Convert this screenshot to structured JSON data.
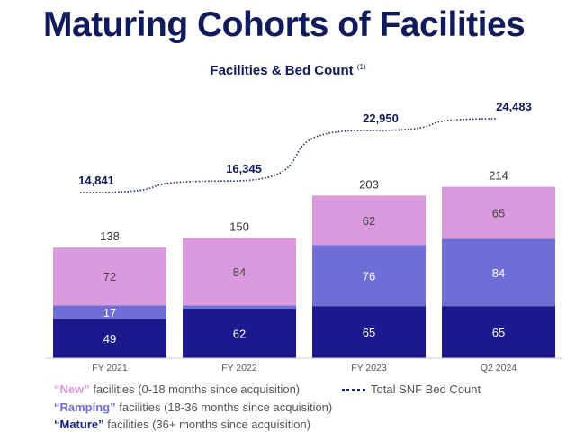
{
  "title": "Maturing Cohorts of Facilities",
  "chart_data": {
    "type": "bar",
    "title": "Facilities & Bed Count",
    "title_note": "(1)",
    "categories": [
      "FY 2021",
      "FY 2022",
      "FY 2023",
      "Q2 2024"
    ],
    "stacked": true,
    "series": [
      {
        "name": "“Mature”",
        "desc": "facilities (36+ months since acquisition)",
        "color": "#1b1a8c",
        "values": [
          49,
          62,
          65,
          65
        ]
      },
      {
        "name": "“Ramping”",
        "desc": "facilities (18-36 months since acquisition)",
        "color": "#6e6ed6",
        "values": [
          17,
          4,
          76,
          84
        ]
      },
      {
        "name": "“New”",
        "desc": "facilities (0-18 months since acquisition)",
        "color": "#dc9ade",
        "values": [
          72,
          84,
          62,
          65
        ]
      }
    ],
    "totals": [
      138,
      150,
      203,
      214
    ],
    "line": {
      "name": "Total SNF Bed Count",
      "type": "line",
      "style": "dotted",
      "color": "#1b2a6e",
      "values": [
        14841,
        16345,
        22950,
        24483
      ],
      "labels": [
        "14,841",
        "16,345",
        "22,950",
        "24,483"
      ]
    },
    "legend_position": "bottom",
    "grid": false
  }
}
